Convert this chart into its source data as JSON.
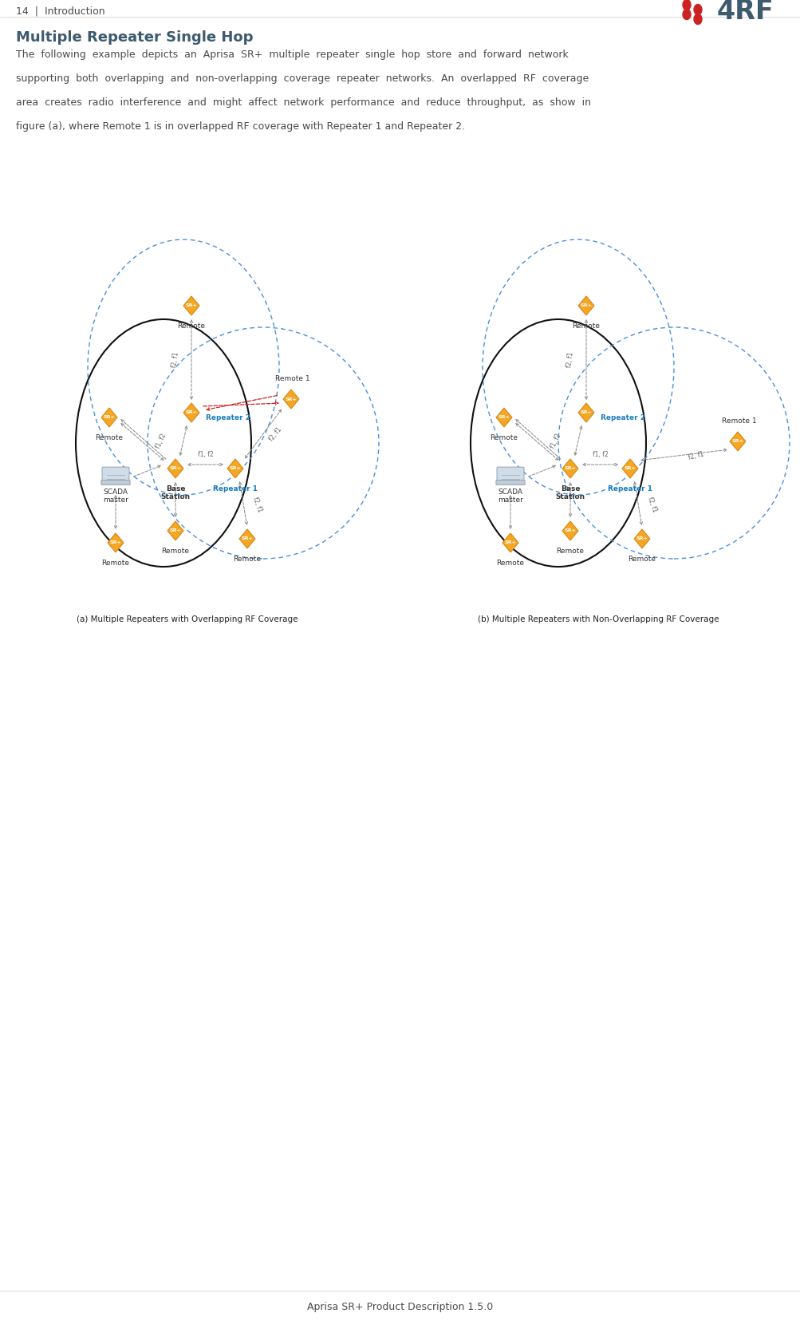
{
  "page_width": 10.04,
  "page_height": 16.56,
  "dpi": 100,
  "bg_color": "#ffffff",
  "header_text": "14  |  Introduction",
  "header_color": "#4a4a4a",
  "header_fontsize": 9,
  "logo_color": "#3d5a6e",
  "logo_dot_color": "#cc2222",
  "title_text": "Multiple Repeater Single Hop",
  "title_fontsize": 13,
  "title_color": "#3d5a6e",
  "body_lines": [
    "The  following  example  depicts  an  Aprisa  SR+  multiple  repeater  single  hop  store  and  forward  network",
    "supporting  both  overlapping  and  non-overlapping  coverage  repeater  networks.  An  overlapped  RF  coverage",
    "area  creates  radio  interference  and  might  affect  network  performance  and  reduce  throughput,  as  show  in",
    "figure (a), where Remote 1 is in overlapped RF coverage with Repeater 1 and Repeater 2."
  ],
  "body_fontsize": 9,
  "body_color": "#4a4a4a",
  "caption_a": "(a) Multiple Repeaters with Overlapping RF Coverage",
  "caption_b": "(b) Multiple Repeaters with Non-Overlapping RF Coverage",
  "caption_fontsize": 7.5,
  "caption_bold_a": "with",
  "caption_color": "#222222",
  "footer_text": "Aprisa SR+ Product Description 1.5.0",
  "footer_fontsize": 9,
  "footer_color": "#4a4a4a",
  "device_color": "#f5a623",
  "device_edge_color": "#d4881a",
  "device_text_color": "#ffffff",
  "device_fontsize": 4.5,
  "label_fontsize": 6.5,
  "label_color": "#333333",
  "repeater_label_color": "#1a7bbf",
  "freq_label_color": "#666666",
  "freq_fontsize": 5.5,
  "circle_solid_color": "#111111",
  "circle_dashed_color": "#4a90d9",
  "arrow_color": "#888888",
  "red_arrow_color": "#cc2222",
  "scada_color": "#c0c8d8",
  "scada_edge_color": "#8090a8"
}
